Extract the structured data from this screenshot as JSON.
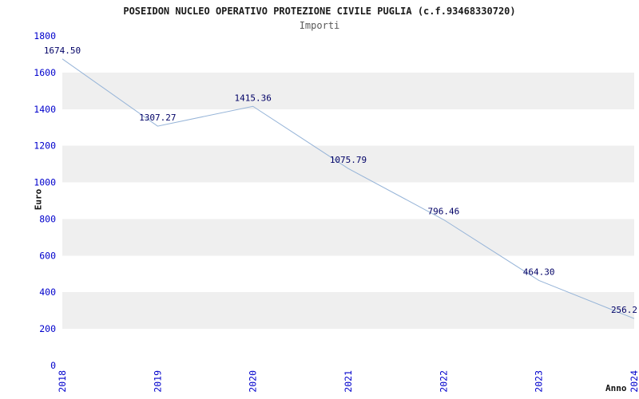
{
  "title": "POSEIDON NUCLEO OPERATIVO PROTEZIONE CIVILE PUGLIA (c.f.93468330720)",
  "subtitle": "Importi",
  "chart_data": {
    "type": "line",
    "title": "POSEIDON NUCLEO OPERATIVO PROTEZIONE CIVILE PUGLIA (c.f.93468330720)",
    "subtitle": "Importi",
    "x": [
      "2018",
      "2019",
      "2020",
      "2021",
      "2022",
      "2023",
      "2024"
    ],
    "series": [
      {
        "name": "Importi",
        "values": [
          1674.5,
          1307.27,
          1415.36,
          1075.79,
          796.46,
          464.3,
          256.2
        ]
      }
    ],
    "point_labels": [
      "1674.50",
      "1307.27",
      "1415.36",
      "1075.79",
      "796.46",
      "464.30",
      "256.2"
    ],
    "xlabel": "Anno",
    "ylabel": "Euro",
    "ylim": [
      0,
      1800
    ],
    "ytick_step": 200,
    "yticks": [
      0,
      200,
      400,
      600,
      800,
      1000,
      1200,
      1400,
      1600,
      1800
    ],
    "grid": "alternating-horizontal-bands",
    "legend": "none",
    "x_tick_rotation": -90,
    "colors": {
      "line": "#96b4d8",
      "band": "#efefef",
      "tick_label": "#0000cc",
      "point_label": "#000066",
      "title": "#1a1a1a",
      "subtitle": "#595959"
    }
  }
}
